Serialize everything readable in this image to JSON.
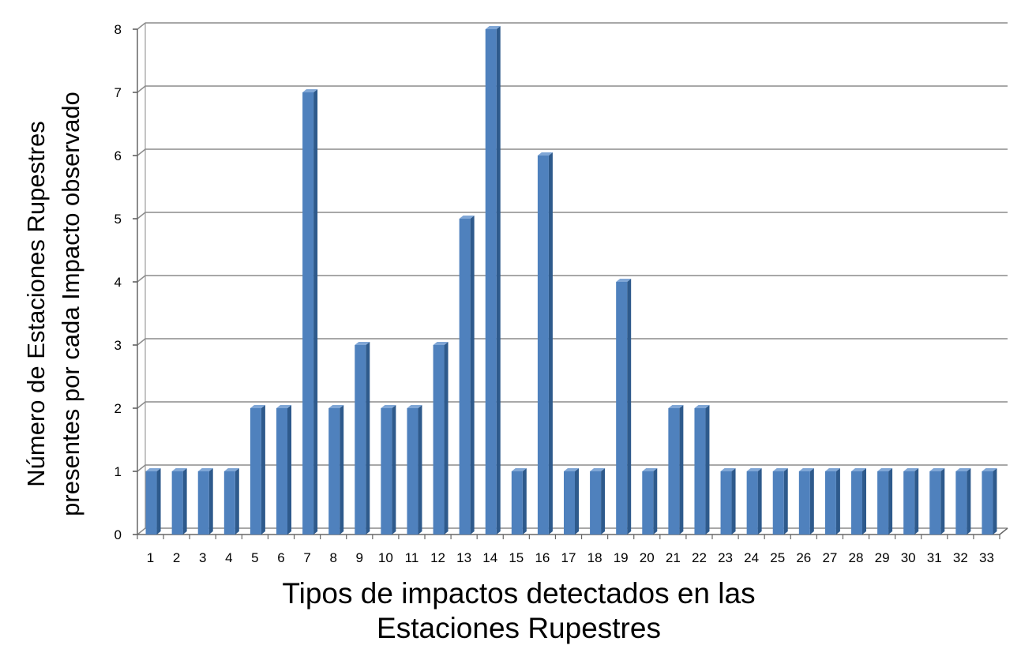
{
  "chart_data": {
    "type": "bar",
    "categories": [
      "1",
      "2",
      "3",
      "4",
      "5",
      "6",
      "7",
      "8",
      "9",
      "10",
      "11",
      "12",
      "13",
      "14",
      "15",
      "16",
      "17",
      "18",
      "19",
      "20",
      "21",
      "22",
      "23",
      "24",
      "25",
      "26",
      "27",
      "28",
      "29",
      "30",
      "31",
      "32",
      "33"
    ],
    "values": [
      1,
      1,
      1,
      1,
      2,
      2,
      7,
      2,
      3,
      2,
      2,
      3,
      5,
      8,
      1,
      6,
      1,
      1,
      4,
      1,
      2,
      2,
      1,
      1,
      1,
      1,
      1,
      1,
      1,
      1,
      1,
      1,
      1
    ],
    "yticks": [
      "0",
      "1",
      "2",
      "3",
      "4",
      "5",
      "6",
      "7",
      "8"
    ],
    "ylim": [
      0,
      8
    ],
    "xlabel_lines": [
      "Tipos de impactos detectados en las",
      "Estaciones Rupestres"
    ],
    "ylabel_lines": [
      "Número de Estaciones Rupestres",
      "presentes por cada Impacto observado"
    ],
    "grid": true,
    "colors": {
      "bar_front": "#4F81BD",
      "bar_side": "#2E5A8C",
      "bar_top": "#7FA6D6",
      "grid": "#8C8C8C"
    }
  }
}
